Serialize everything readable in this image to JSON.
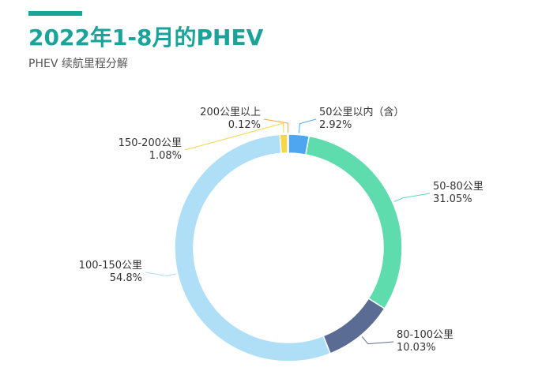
{
  "header": {
    "title": "2022年1-8月的PHEV",
    "subtitle": "PHEV 续航里程分解"
  },
  "colors": {
    "accent": "#1aa39a"
  },
  "chart_data": {
    "type": "pie",
    "donut": true,
    "title": "2022年1-8月的PHEV",
    "subtitle": "PHEV 续航里程分解",
    "legend": "none",
    "slices": [
      {
        "label": "50公里以内（含）",
        "value": 2.92,
        "value_label": "2.92%",
        "color": "#4fa6f0"
      },
      {
        "label": "50-80公里",
        "value": 31.05,
        "value_label": "31.05%",
        "color": "#5fdcae"
      },
      {
        "label": "80-100公里",
        "value": 10.03,
        "value_label": "10.03%",
        "color": "#5a6b94"
      },
      {
        "label": "100-150公里",
        "value": 54.8,
        "value_label": "54.8%",
        "color": "#afdff6"
      },
      {
        "label": "150-200公里",
        "value": 1.08,
        "value_label": "1.08%",
        "color": "#f7d64a"
      },
      {
        "label": "200公里以上",
        "value": 0.12,
        "value_label": "0.12%",
        "color": "#f5a33a"
      }
    ]
  }
}
